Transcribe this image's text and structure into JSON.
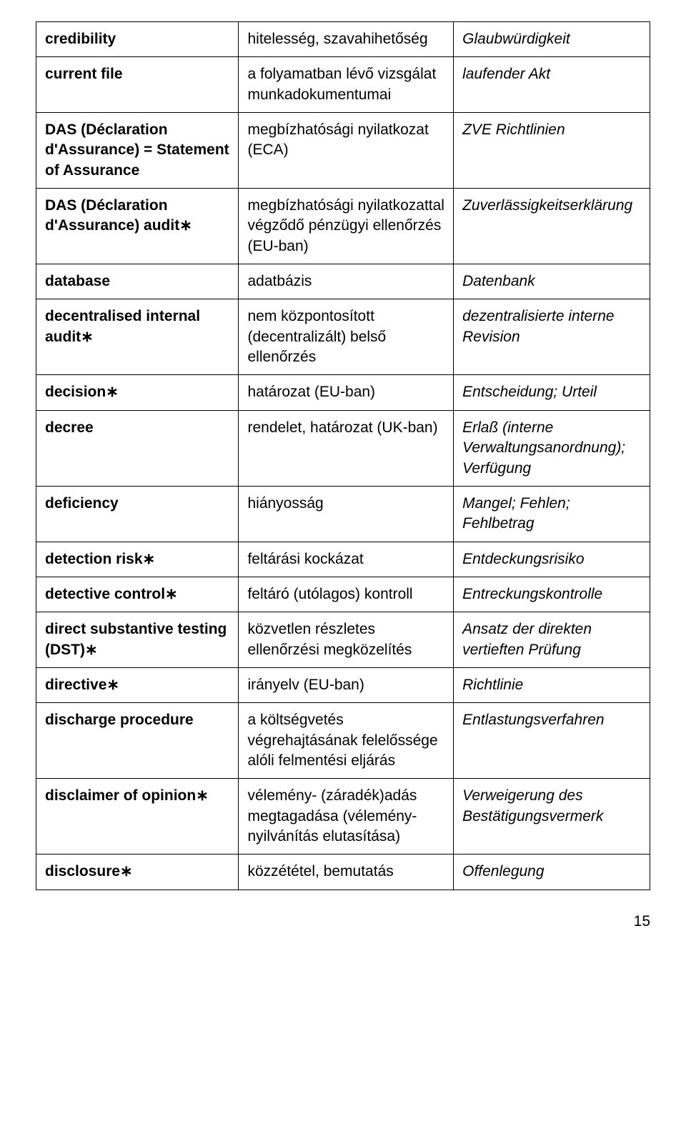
{
  "rows": [
    {
      "c1": "credibility",
      "c2": "hitelesség, szavahihetőség",
      "c3": "Glaubwürdigkeit"
    },
    {
      "c1": "current file",
      "c2": "a folyamatban lévő vizsgálat munkadokumentumai",
      "c3": "laufender Akt"
    },
    {
      "c1": "DAS (Déclaration d'Assurance) = Statement of Assurance",
      "c2": "megbízhatósági nyilatkozat (ECA)",
      "c3": "ZVE Richtlinien"
    },
    {
      "c1": "DAS (Déclaration d'Assurance) audit∗",
      "c2": "megbízhatósági nyilatkozattal végződő pénzügyi ellenőrzés (EU-ban)",
      "c3": "Zuverlässigkeitserklärung"
    },
    {
      "c1": "database",
      "c2": "adatbázis",
      "c3": "Datenbank"
    },
    {
      "c1": "decentralised internal audit∗",
      "c2": "nem központosított (decentralizált) belső ellenőrzés",
      "c3": "dezentralisierte interne Revision"
    },
    {
      "c1": "decision∗",
      "c2": "határozat (EU-ban)",
      "c3": "Entscheidung; Urteil"
    },
    {
      "c1": "decree",
      "c2": "rendelet, határozat (UK-ban)",
      "c3": "Erlaß (interne Verwaltungsanordnung); Verfügung"
    },
    {
      "c1": "deficiency",
      "c2": "hiányosság",
      "c3": "Mangel; Fehlen; Fehlbetrag"
    },
    {
      "c1": "detection risk∗",
      "c2": "feltárási kockázat",
      "c3": "Entdeckungsrisiko"
    },
    {
      "c1": "detective control∗",
      "c2": "feltáró (utólagos)  kontroll",
      "c3": "Entreckungskontrolle"
    },
    {
      "c1": "direct substantive testing (DST)∗",
      "c2": "közvetlen részletes ellenőrzési megközelítés",
      "c3": "Ansatz der direkten vertieften Prüfung"
    },
    {
      "c1": "directive∗",
      "c2": "irányelv (EU-ban)",
      "c3": "Richtlinie"
    },
    {
      "c1": "discharge procedure",
      "c2": "a költségvetés végrehajtásának felelőssége alóli felmentési eljárás",
      "c3": "Entlastungsverfahren"
    },
    {
      "c1": "disclaimer of opinion∗",
      "c2": "vélemény- (záradék)adás megtagadása (vélemény-nyilvánítás elutasítása)",
      "c3": "Verweigerung des Bestätigungsvermerk"
    },
    {
      "c1": "disclosure∗",
      "c2": "közzététel, bemutatás",
      "c3": "Offenlegung"
    }
  ],
  "page_number": "15",
  "colors": {
    "text": "#000000",
    "background": "#ffffff",
    "border": "#000000"
  }
}
